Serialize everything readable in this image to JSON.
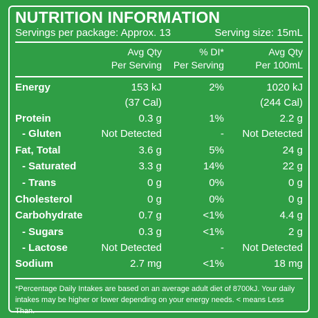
{
  "title": "NUTRITION INFORMATION",
  "servings_per_package": "Servings per package: Approx. 13",
  "serving_size": "Serving size: 15mL",
  "columns": {
    "per_serving_l1": "Avg Qty",
    "per_serving_l2": "Per Serving",
    "di_l1": "% DI*",
    "di_l2": "Per Serving",
    "per100_l1": "Avg Qty",
    "per100_l2": "Per 100mL"
  },
  "rows": [
    {
      "label": "Energy",
      "serving": "153 kJ",
      "di": "2%",
      "per100": "1020 kJ"
    },
    {
      "label": "",
      "serving": "(37 Cal)",
      "di": "",
      "per100": "(244 Cal)"
    },
    {
      "label": "Protein",
      "serving": "0.3 g",
      "di": "1%",
      "per100": "2.2 g"
    },
    {
      "label": "- Gluten",
      "serving": "Not Detected",
      "di": "-",
      "per100": "Not Detected"
    },
    {
      "label": "Fat, Total",
      "serving": "3.6 g",
      "di": "5%",
      "per100": "24 g"
    },
    {
      "label": "- Saturated",
      "serving": "3.3 g",
      "di": "14%",
      "per100": "22 g"
    },
    {
      "label": "- Trans",
      "serving": "0 g",
      "di": "0%",
      "per100": "0 g"
    },
    {
      "label": "Cholesterol",
      "serving": "0 g",
      "di": "0%",
      "per100": "0 g"
    },
    {
      "label": "Carbohydrate",
      "serving": "0.7 g",
      "di": "<1%",
      "per100": "4.4 g"
    },
    {
      "label": "- Sugars",
      "serving": "0.3 g",
      "di": "<1%",
      "per100": "2 g"
    },
    {
      "label": "- Lactose",
      "serving": "Not Detected",
      "di": "-",
      "per100": "Not Detected"
    },
    {
      "label": "Sodium",
      "serving": "2.7 mg",
      "di": "<1%",
      "per100": "18 mg"
    }
  ],
  "footnote_l1": "*Percentage Daily Intakes are based on an average adult diet of 8700kJ. Your daily",
  "footnote_l2": "intakes may be higher or lower depending on your energy needs. < means Less Than."
}
